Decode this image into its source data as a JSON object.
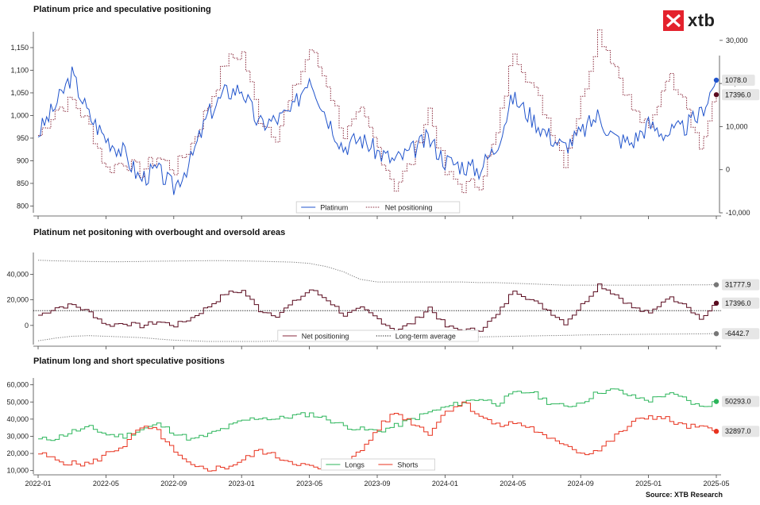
{
  "source": "Source: XTB Research",
  "logo": {
    "text": "xtb",
    "color": "#e4222d"
  },
  "colors": {
    "platinum": "#2255cc",
    "net": "#5a0a1e",
    "net_line": "#8a2a3c",
    "longs": "#2bb55a",
    "shorts": "#e8321e",
    "grey": "#777777"
  },
  "chart_data": [
    {
      "type": "line",
      "title": "Platinum price and speculative positioning",
      "x": [
        "2022-01",
        "2022-02",
        "2022-03",
        "2022-04",
        "2022-05",
        "2022-06",
        "2022-07",
        "2022-08",
        "2022-09",
        "2022-10",
        "2022-11",
        "2022-12",
        "2023-01",
        "2023-02",
        "2023-03",
        "2023-04",
        "2023-05",
        "2023-06",
        "2023-07",
        "2023-08",
        "2023-09",
        "2023-10",
        "2023-11",
        "2023-12",
        "2024-01",
        "2024-02",
        "2024-03",
        "2024-04",
        "2024-05",
        "2024-06",
        "2024-07",
        "2024-08",
        "2024-09",
        "2024-10",
        "2024-11",
        "2024-12",
        "2025-01",
        "2025-02",
        "2025-03",
        "2025-04",
        "2025-05"
      ],
      "x_ticks": [
        "2022-01",
        "2022-05",
        "2022-09",
        "2023-01",
        "2023-05",
        "2023-09",
        "2024-01",
        "2024-05",
        "2024-09",
        "2025-01",
        "2025-05"
      ],
      "series": [
        {
          "name": "Platinum",
          "axis": "left",
          "values": [
            960,
            1020,
            1090,
            1000,
            950,
            920,
            860,
            880,
            840,
            900,
            1000,
            1050,
            1060,
            980,
            990,
            1010,
            1090,
            1000,
            930,
            950,
            920,
            900,
            920,
            950,
            900,
            890,
            880,
            930,
            1040,
            1000,
            960,
            930,
            960,
            1000,
            950,
            940,
            980,
            960,
            970,
            1000,
            1078
          ]
        },
        {
          "name": "Net positioning",
          "axis": "right",
          "values": [
            8000,
            14000,
            16000,
            10000,
            0,
            2000,
            -500,
            3000,
            0,
            6000,
            15000,
            25000,
            27000,
            12000,
            8000,
            18000,
            28000,
            20000,
            8000,
            13000,
            5000,
            -4000,
            2000,
            14000,
            -1000,
            -4000,
            -3000,
            8000,
            28000,
            20000,
            12000,
            2000,
            16000,
            32000,
            24000,
            14000,
            9000,
            22000,
            18000,
            5000,
            17396
          ]
        }
      ],
      "y_left_ticks": [
        800,
        850,
        900,
        950,
        1000,
        1050,
        1100,
        1150
      ],
      "ylim_left": [
        785,
        1185
      ],
      "y_right_ticks": [
        -10000,
        0,
        10000,
        20000,
        30000
      ],
      "ylim_right": [
        -10000,
        32000
      ],
      "end_labels": [
        "1078.0",
        "17396.0"
      ],
      "legend": "bottom-center"
    },
    {
      "type": "line",
      "title": "Platinum net positoning with overbought and oversold areas",
      "x": [
        "2022-01",
        "2022-02",
        "2022-03",
        "2022-04",
        "2022-05",
        "2022-06",
        "2022-07",
        "2022-08",
        "2022-09",
        "2022-10",
        "2022-11",
        "2022-12",
        "2023-01",
        "2023-02",
        "2023-03",
        "2023-04",
        "2023-05",
        "2023-06",
        "2023-07",
        "2023-08",
        "2023-09",
        "2023-10",
        "2023-11",
        "2023-12",
        "2024-01",
        "2024-02",
        "2024-03",
        "2024-04",
        "2024-05",
        "2024-06",
        "2024-07",
        "2024-08",
        "2024-09",
        "2024-10",
        "2024-11",
        "2024-12",
        "2025-01",
        "2025-02",
        "2025-03",
        "2025-04",
        "2025-05"
      ],
      "series": [
        {
          "name": "Net positioning",
          "values": [
            8000,
            14000,
            16000,
            10000,
            0,
            2000,
            -500,
            3000,
            0,
            6000,
            15000,
            25000,
            27000,
            12000,
            8000,
            18000,
            28000,
            20000,
            8000,
            13000,
            5000,
            -4000,
            2000,
            14000,
            -1000,
            -4000,
            -3000,
            8000,
            28000,
            20000,
            12000,
            2000,
            16000,
            32000,
            24000,
            14000,
            9000,
            22000,
            18000,
            5000,
            17396
          ]
        },
        {
          "name": "Long-term average",
          "values": [
            11500,
            11500,
            11500,
            11500,
            11500,
            11500,
            11500,
            11500,
            11500,
            11500,
            11500,
            11500,
            11500,
            11500,
            11500,
            11500,
            11500,
            11500,
            11500,
            11500,
            11500,
            11500,
            11500,
            11500,
            11500,
            11500,
            11500,
            11500,
            11500,
            11500,
            11500,
            11500,
            11500,
            11500,
            11500,
            11500,
            11500,
            11500,
            11500,
            11500,
            11500
          ]
        },
        {
          "name": "",
          "values": [
            51000,
            50500,
            50200,
            50000,
            49800,
            49800,
            50000,
            50200,
            50300,
            50500,
            50600,
            50600,
            50400,
            50200,
            49800,
            49500,
            48500,
            46000,
            42000,
            36000,
            34000,
            34000,
            34000,
            34000,
            34000,
            34000,
            33500,
            33500,
            33000,
            32500,
            32000,
            31500,
            31500,
            31500,
            31500,
            31500,
            31500,
            31600,
            31700,
            31750,
            31777.9
          ]
        },
        {
          "name": "",
          "values": [
            -12000,
            -10000,
            -8500,
            -8000,
            -8500,
            -9000,
            -9500,
            -10500,
            -11500,
            -12000,
            -12500,
            -12500,
            -12500,
            -12500,
            -12300,
            -12000,
            -12000,
            -12000,
            -11800,
            -11500,
            -11000,
            -10500,
            -10200,
            -10000,
            -9800,
            -9500,
            -9000,
            -8700,
            -8500,
            -8200,
            -8000,
            -7800,
            -7500,
            -7300,
            -7100,
            -7000,
            -6900,
            -6800,
            -6700,
            -6600,
            -6442.7
          ]
        }
      ],
      "y_ticks": [
        0,
        20000,
        40000
      ],
      "ylim": [
        -15000,
        57000
      ],
      "end_labels": [
        "31777.9",
        "17396.0",
        "-6442.7"
      ],
      "legend": "bottom-center"
    },
    {
      "type": "line",
      "title": "Platinum long and short speculative positions",
      "x": [
        "2022-01",
        "2022-02",
        "2022-03",
        "2022-04",
        "2022-05",
        "2022-06",
        "2022-07",
        "2022-08",
        "2022-09",
        "2022-10",
        "2022-11",
        "2022-12",
        "2023-01",
        "2023-02",
        "2023-03",
        "2023-04",
        "2023-05",
        "2023-06",
        "2023-07",
        "2023-08",
        "2023-09",
        "2023-10",
        "2023-11",
        "2023-12",
        "2024-01",
        "2024-02",
        "2024-03",
        "2024-04",
        "2024-05",
        "2024-06",
        "2024-07",
        "2024-08",
        "2024-09",
        "2024-10",
        "2024-11",
        "2024-12",
        "2025-01",
        "2025-02",
        "2025-03",
        "2025-04",
        "2025-05"
      ],
      "series": [
        {
          "name": "Longs",
          "values": [
            28000,
            29000,
            33000,
            35000,
            31000,
            30000,
            34000,
            37000,
            32000,
            28000,
            31000,
            35000,
            39000,
            41000,
            40000,
            42000,
            43000,
            40000,
            36000,
            34000,
            33000,
            36000,
            40000,
            44000,
            47000,
            50000,
            52000,
            49000,
            55000,
            56000,
            50000,
            47000,
            50000,
            56000,
            57000,
            53000,
            51000,
            55000,
            52000,
            47000,
            50293
          ]
        },
        {
          "name": "Shorts",
          "values": [
            20000,
            16000,
            14000,
            14000,
            20000,
            25000,
            35000,
            33000,
            20000,
            12000,
            11000,
            12000,
            16000,
            22000,
            18000,
            15000,
            12000,
            10000,
            13000,
            22000,
            35000,
            44000,
            38000,
            32000,
            45000,
            50000,
            42000,
            36000,
            38000,
            35000,
            28000,
            26000,
            20000,
            22000,
            30000,
            38000,
            42000,
            40000,
            36000,
            35000,
            32897
          ]
        }
      ],
      "y_ticks": [
        10000,
        20000,
        30000,
        40000,
        50000,
        60000
      ],
      "ylim": [
        8000,
        64000
      ],
      "end_labels": [
        "50293.0",
        "32897.0"
      ],
      "legend": "bottom-center"
    }
  ]
}
